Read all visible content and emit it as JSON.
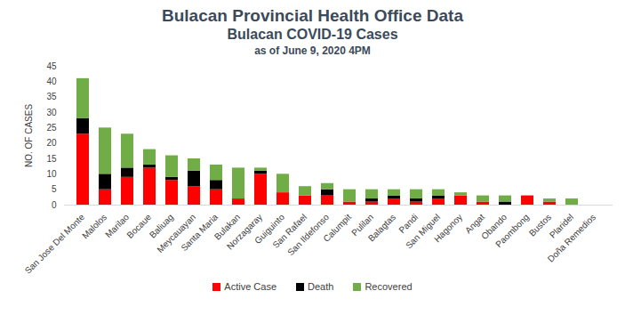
{
  "chart_data": {
    "type": "bar",
    "title": "Bulacan Provincial Health Office Data",
    "subtitle": "Bulacan COVID-19 Cases",
    "annotations": [
      "as of June 9, 2020 4PM"
    ],
    "ylabel": "NO. OF CASES",
    "categories": [
      "San Jose Del Monte",
      "Malolos",
      "Marilao",
      "Bocaue",
      "Baliuag",
      "Meycauayan",
      "Santa Maria",
      "Bulakan",
      "Norzagaray",
      "Guiguinto",
      "San Rafael",
      "San Ildefonso",
      "Calumpit",
      "Pulilan",
      "Balagtas",
      "Pandi",
      "San Miguel",
      "Hagonoy",
      "Angat",
      "Obando",
      "Paombong",
      "Bustos",
      "Plaridel",
      "Doña Remedios"
    ],
    "series": [
      {
        "name": "Active Case",
        "color": "#ff0000",
        "values": [
          23,
          5,
          9,
          12,
          8,
          6,
          5,
          2,
          10,
          4,
          3,
          3,
          1,
          1,
          2,
          1,
          2,
          3,
          1,
          0,
          3,
          1,
          0,
          0
        ]
      },
      {
        "name": "Death",
        "color": "#000000",
        "values": [
          5,
          5,
          3,
          1,
          1,
          5,
          3,
          0,
          1,
          0,
          0,
          2,
          0,
          1,
          1,
          1,
          1,
          0,
          0,
          1,
          0,
          0,
          0,
          0
        ]
      },
      {
        "name": "Recovered",
        "color": "#70ad47",
        "values": [
          13,
          15,
          11,
          5,
          7,
          4,
          5,
          10,
          1,
          6,
          3,
          2,
          4,
          3,
          2,
          3,
          2,
          1,
          2,
          2,
          0,
          1,
          2,
          0
        ]
      }
    ],
    "stacked": true,
    "ylim": [
      0,
      45
    ],
    "yticks": [
      0,
      5,
      10,
      15,
      20,
      25,
      30,
      35,
      40,
      45
    ],
    "grid": false,
    "legend": "bottom"
  }
}
